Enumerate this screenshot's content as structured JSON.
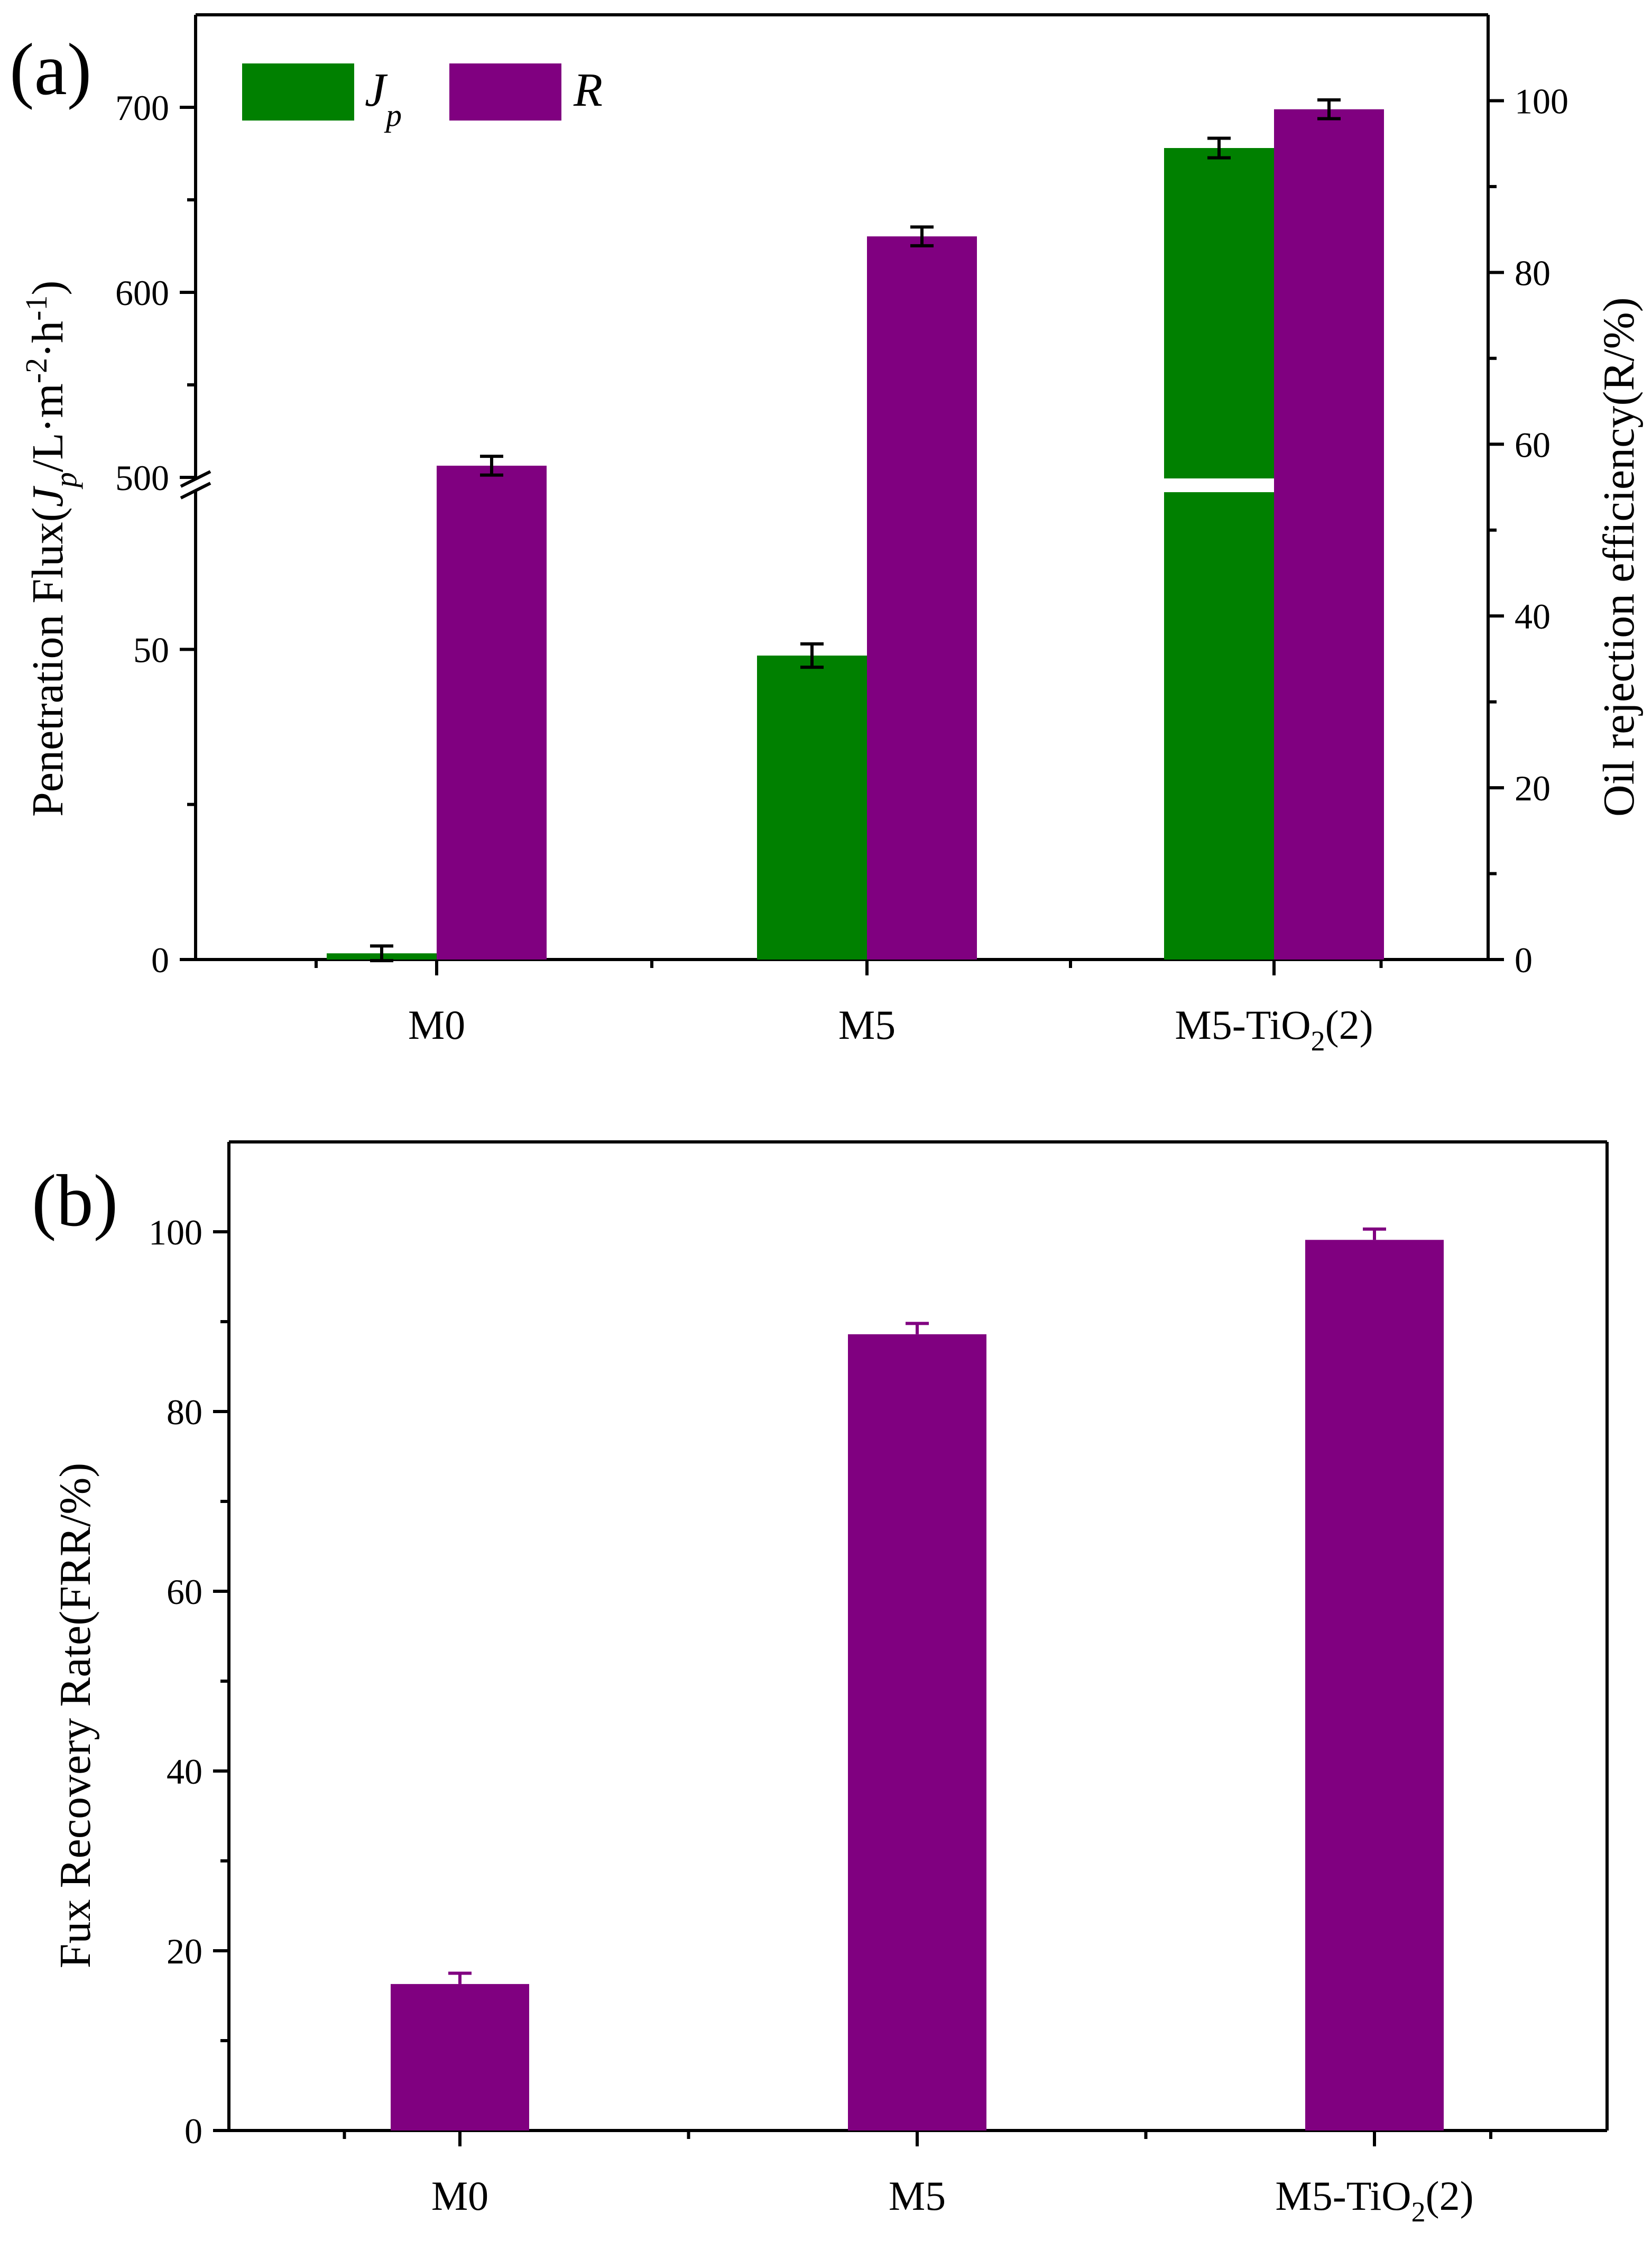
{
  "colors": {
    "jp": "#008000",
    "r": "#800080",
    "axis": "#000000",
    "background": "#ffffff"
  },
  "chart_data": [
    {
      "panel": "(a)",
      "type": "bar",
      "categories": [
        "M0",
        "M5",
        "M5-TiO₂(2)"
      ],
      "category_parts": [
        {
          "base": "M0",
          "sub": "",
          "tail": ""
        },
        {
          "base": "M5",
          "sub": "",
          "tail": ""
        },
        {
          "base": "M5-TiO",
          "sub": "2",
          "tail": "(2)"
        }
      ],
      "ylabel_left": {
        "pre": "Penetration Flux(",
        "J": "J",
        "p": "p",
        "mid": "/L·m",
        "sup1": "-2",
        "dot": "·h",
        "sup2": "-1",
        "post": ")"
      },
      "ylabel_right": "Oil rejection efficiency(R/%)",
      "left_axis": {
        "segments": [
          {
            "range": [
              0,
              75
            ],
            "ticks": [
              0,
              50
            ]
          },
          {
            "range": [
              500,
              750
            ],
            "ticks": [
              500,
              600,
              700
            ]
          }
        ],
        "break": true
      },
      "right_axis": {
        "ylim": [
          0,
          110
        ],
        "ticks": [
          0,
          20,
          40,
          60,
          80,
          100
        ]
      },
      "legend": {
        "position": "top-left",
        "entries": [
          {
            "key": "Jp",
            "text": "J",
            "sub": "p"
          },
          {
            "key": "R",
            "text": "R"
          }
        ]
      },
      "series": [
        {
          "name": "Jp",
          "axis": "left",
          "values": [
            1,
            49,
            678
          ],
          "errors": [
            0.5,
            1.2,
            3
          ]
        },
        {
          "name": "R",
          "axis": "right",
          "values": [
            57.5,
            84.2,
            99
          ],
          "errors": [
            0.6,
            0.6,
            0.6
          ]
        }
      ]
    },
    {
      "panel": "(b)",
      "type": "bar",
      "categories": [
        "M0",
        "M5",
        "M5-TiO₂(2)"
      ],
      "category_parts": [
        {
          "base": "M0",
          "sub": "",
          "tail": ""
        },
        {
          "base": "M5",
          "sub": "",
          "tail": ""
        },
        {
          "base": "M5-TiO",
          "sub": "2",
          "tail": "(2)"
        }
      ],
      "ylabel": "Fux Recovery Rate(FRR/%)",
      "ylim": [
        0,
        110
      ],
      "ticks": [
        0,
        20,
        40,
        60,
        80,
        100
      ],
      "series": [
        {
          "name": "FRR",
          "values": [
            16.3,
            88.6,
            99.1
          ],
          "errors": [
            1.2,
            1.2,
            1.2
          ]
        }
      ]
    }
  ]
}
